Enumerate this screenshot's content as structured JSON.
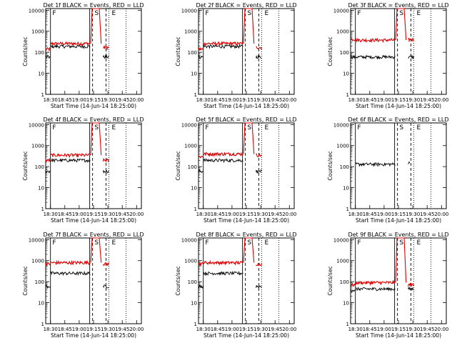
{
  "chart_data": {
    "type": "line",
    "x_label": "Start Time (14-Jun-14 18:25:00)",
    "y_label": "Counts/sec",
    "x_ticks": [
      "18:30",
      "18:45",
      "19:00",
      "19:15",
      "19:30",
      "19:45",
      "20:00"
    ],
    "y_ticks": [
      "1",
      "10",
      "100",
      "1000",
      "10000"
    ],
    "y_scale": "log",
    "ylim": [
      1,
      12000
    ],
    "xlim_minutes": [
      0,
      100
    ],
    "series_colors": {
      "events": "#000000",
      "lld": "#e00000"
    },
    "panels": [
      {
        "title": "Det 1f BLACK = Events, RED = LLD",
        "markers": [
          "F",
          "S",
          "E"
        ],
        "segments": [
          {
            "start": 0,
            "end": 5,
            "events": 60,
            "lld": 140
          },
          {
            "start": 5,
            "end": 47,
            "events": 190,
            "lld": 260
          },
          {
            "start": 60,
            "end": 66,
            "events": 60,
            "lld": 170
          }
        ],
        "peak": {
          "from": 47,
          "to": 58,
          "level": 12000
        }
      },
      {
        "title": "Det 2f BLACK = Events, RED = LLD",
        "markers": [
          "F",
          "S",
          "E"
        ],
        "segments": [
          {
            "start": 0,
            "end": 5,
            "events": 60,
            "lld": 140
          },
          {
            "start": 5,
            "end": 47,
            "events": 190,
            "lld": 260
          },
          {
            "start": 60,
            "end": 66,
            "events": 60,
            "lld": 170
          }
        ],
        "peak": {
          "from": 47,
          "to": 58,
          "level": 12000
        }
      },
      {
        "title": "Det 3f BLACK = Events, RED = LLD",
        "markers": [
          "F",
          "S",
          "E"
        ],
        "segments": [
          {
            "start": 0,
            "end": 5,
            "events": 60,
            "lld": 420
          },
          {
            "start": 5,
            "end": 47,
            "events": 60,
            "lld": 380
          },
          {
            "start": 60,
            "end": 66,
            "events": 60,
            "lld": 400
          }
        ],
        "peak": {
          "from": 47,
          "to": 58,
          "level": 12000
        }
      },
      {
        "title": "Det 4f BLACK = Events, RED = LLD",
        "markers": [
          "F",
          "S",
          "E"
        ],
        "segments": [
          {
            "start": 0,
            "end": 5,
            "events": 60,
            "lld": 200
          },
          {
            "start": 5,
            "end": 47,
            "events": 200,
            "lld": 350
          },
          {
            "start": 60,
            "end": 66,
            "events": 60,
            "lld": 200
          }
        ],
        "peak": {
          "from": 47,
          "to": 58,
          "level": 12000
        }
      },
      {
        "title": "Det 5f BLACK = Events, RED = LLD",
        "markers": [
          "F",
          "S",
          "E"
        ],
        "segments": [
          {
            "start": 0,
            "end": 5,
            "events": 60,
            "lld": 300
          },
          {
            "start": 5,
            "end": 47,
            "events": 200,
            "lld": 400
          },
          {
            "start": 60,
            "end": 66,
            "events": 60,
            "lld": 350
          }
        ],
        "peak": {
          "from": 47,
          "to": 58,
          "level": 12000
        }
      },
      {
        "title": "Det 6f BLACK = Events, RED = LLD",
        "markers": [
          "F",
          "S",
          "E"
        ],
        "segments": [
          {
            "start": 5,
            "end": 47,
            "events": 130,
            "lld": null
          },
          {
            "start": 60,
            "end": 62,
            "events": 150,
            "lld": null
          }
        ],
        "peak": null
      },
      {
        "title": "Det 7f BLACK = Events, RED = LLD",
        "markers": [
          "F",
          "S",
          "E"
        ],
        "segments": [
          {
            "start": 0,
            "end": 5,
            "events": 60,
            "lld": 700
          },
          {
            "start": 5,
            "end": 47,
            "events": 250,
            "lld": 800
          },
          {
            "start": 60,
            "end": 66,
            "events": 60,
            "lld": 700
          }
        ],
        "peak": {
          "from": 47,
          "to": 58,
          "level": 12000
        }
      },
      {
        "title": "Det 8f BLACK = Events, RED = LLD",
        "markers": [
          "F",
          "S",
          "E"
        ],
        "segments": [
          {
            "start": 0,
            "end": 5,
            "events": 60,
            "lld": 700
          },
          {
            "start": 5,
            "end": 47,
            "events": 250,
            "lld": 800
          },
          {
            "start": 60,
            "end": 66,
            "events": 60,
            "lld": 700
          }
        ],
        "peak": {
          "from": 47,
          "to": 58,
          "level": 12000
        }
      },
      {
        "title": "Det 9f BLACK = Events, RED = LLD",
        "markers": [
          "F",
          "S",
          "E"
        ],
        "segments": [
          {
            "start": 0,
            "end": 5,
            "events": 40,
            "lld": 70
          },
          {
            "start": 5,
            "end": 47,
            "events": 45,
            "lld": 90
          },
          {
            "start": 60,
            "end": 66,
            "events": 45,
            "lld": 70
          }
        ],
        "peak": {
          "from": 47,
          "to": 58,
          "level": 12000
        }
      }
    ]
  }
}
